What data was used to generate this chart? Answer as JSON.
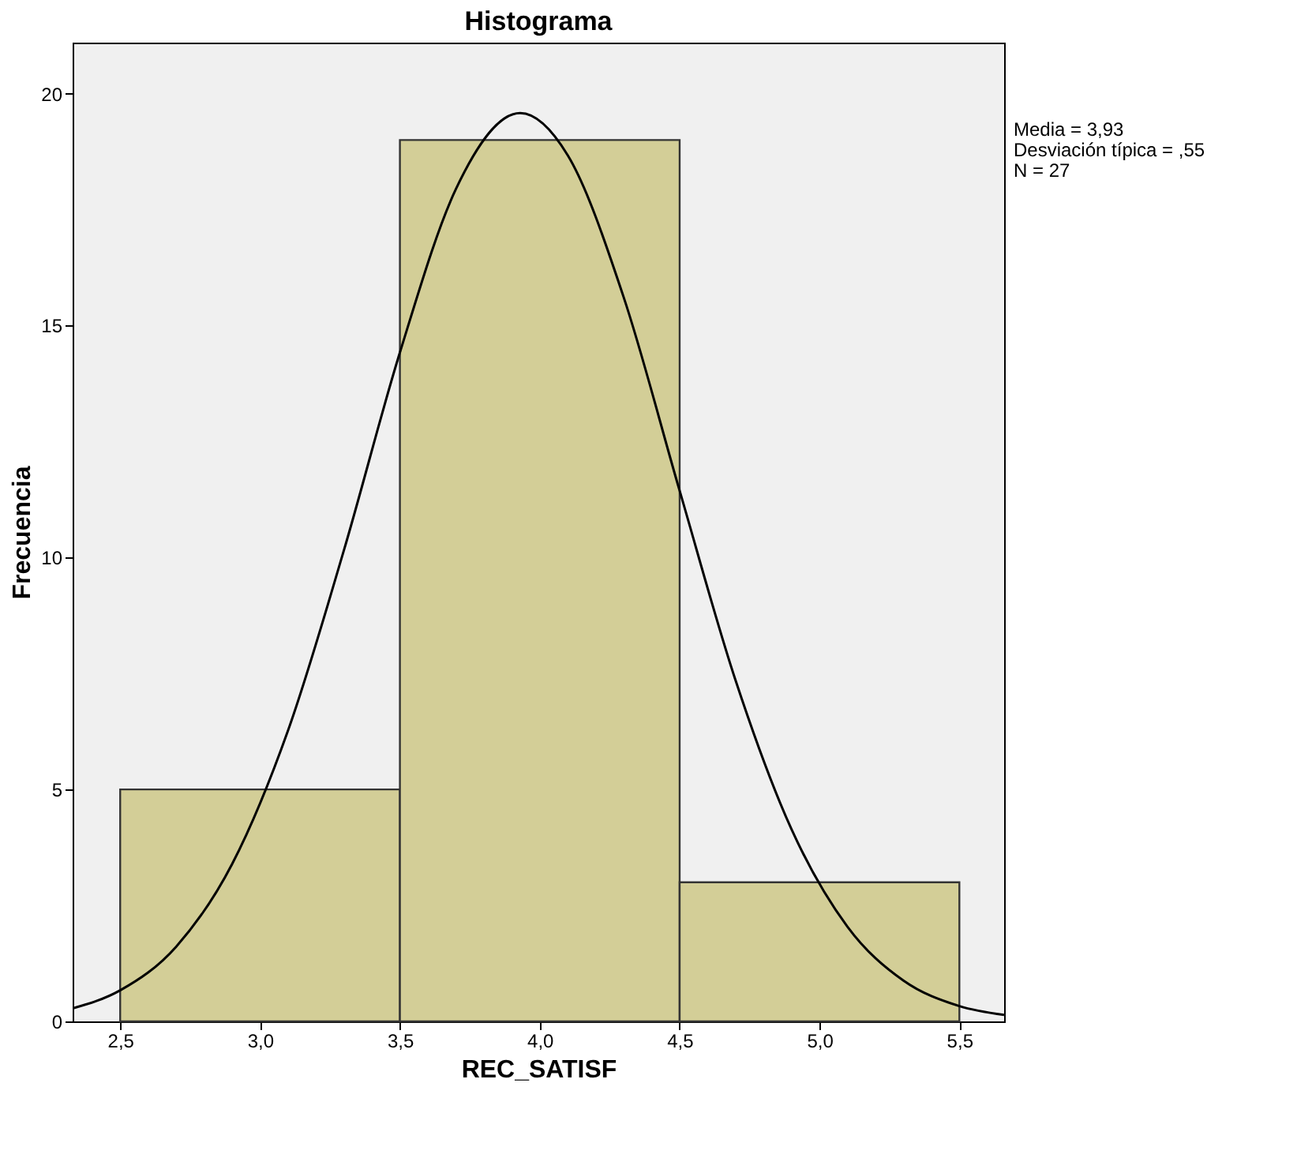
{
  "chart_data": {
    "type": "histogram",
    "title": "Histograma",
    "xlabel": "REC_SATISF",
    "ylabel": "Frecuencia",
    "bins": [
      2.5,
      3.5,
      4.5,
      5.5
    ],
    "values": [
      5,
      19,
      3
    ],
    "color": "#d3ce97",
    "series": [
      {
        "type": "line",
        "color": "#000000",
        "x": [
          2.33,
          2.5,
          2.7,
          2.9,
          3.1,
          3.3,
          3.5,
          3.7,
          3.93,
          4.1,
          4.3,
          4.5,
          4.7,
          4.9,
          5.1,
          5.3,
          5.5,
          5.66
        ],
        "values": [
          0.28,
          0.67,
          1.61,
          3.39,
          6.27,
          10.16,
          14.42,
          17.94,
          19.58,
          18.67,
          15.61,
          11.44,
          7.35,
          4.14,
          2.04,
          0.88,
          0.33,
          0.14
        ]
      }
    ],
    "xlim": [
      2.33,
      5.66
    ],
    "xticks": [
      {
        "value": 2.5,
        "label": "2,5"
      },
      {
        "value": 3,
        "label": "3,0"
      },
      {
        "value": 3.5,
        "label": "3,5"
      },
      {
        "value": 4,
        "label": "4,0"
      },
      {
        "value": 4.5,
        "label": "4,5"
      },
      {
        "value": 5,
        "label": "5,0"
      },
      {
        "value": 5.5,
        "label": "5,5"
      }
    ],
    "ylim": [
      0,
      21.1
    ],
    "yticks": [
      0,
      5,
      10,
      15,
      20
    ],
    "annotations": [
      "Media = 3,93",
      "Desviación típica = ,55",
      "N = 27"
    ]
  }
}
